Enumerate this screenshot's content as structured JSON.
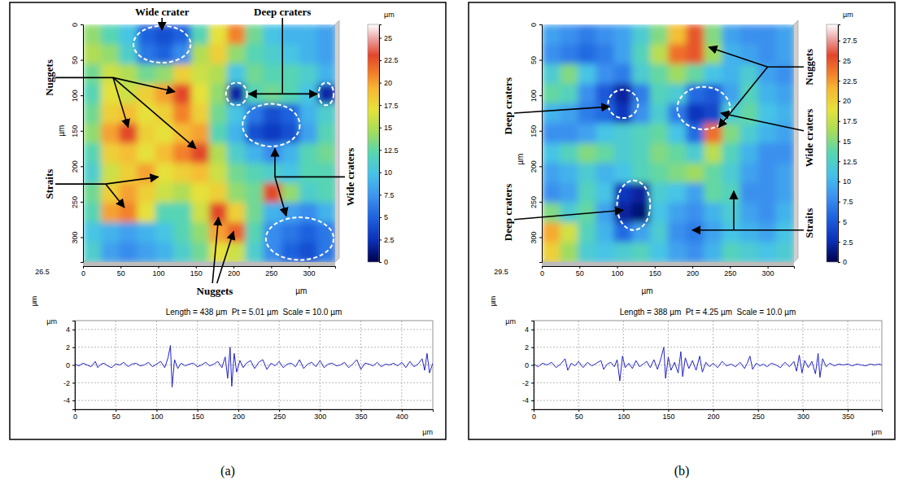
{
  "chart_data": [
    {
      "type": "heatmap",
      "panel_label": "(a)",
      "x_label": "µm",
      "y_label": "µm",
      "z_label": "µm",
      "colorbar_label": "µm",
      "xlim": [
        0,
        335
      ],
      "xticks": [
        0,
        50,
        100,
        150,
        200,
        250,
        300
      ],
      "ylim": [
        0,
        335
      ],
      "yticks": [
        0,
        50,
        100,
        150,
        200,
        250,
        300
      ],
      "values": [
        [
          14,
          12,
          10,
          5,
          4,
          5,
          12,
          17,
          21,
          13,
          10,
          9,
          9,
          8
        ],
        [
          15,
          14,
          11,
          6,
          5,
          7,
          15,
          18,
          14,
          12,
          11,
          10,
          9,
          8
        ],
        [
          13,
          16,
          15,
          13,
          14,
          18,
          16,
          15,
          10,
          13,
          12,
          12,
          11,
          9
        ],
        [
          12,
          17,
          16,
          18,
          20,
          23,
          17,
          14,
          2,
          12,
          13,
          12,
          10,
          2
        ],
        [
          13,
          18,
          19,
          17,
          18,
          21,
          18,
          13,
          10,
          6,
          4,
          5,
          9,
          11
        ],
        [
          14,
          20,
          23,
          18,
          17,
          19,
          20,
          12,
          9,
          4,
          3,
          4,
          8,
          12
        ],
        [
          12,
          18,
          19,
          17,
          19,
          21,
          23,
          15,
          11,
          9,
          7,
          9,
          12,
          13
        ],
        [
          11,
          16,
          18,
          20,
          17,
          18,
          19,
          16,
          13,
          12,
          11,
          10,
          12,
          12
        ],
        [
          13,
          18,
          20,
          18,
          16,
          15,
          17,
          18,
          14,
          13,
          23,
          14,
          11,
          12
        ],
        [
          12,
          20,
          21,
          17,
          12,
          12,
          16,
          23,
          18,
          13,
          9,
          8,
          7,
          9
        ],
        [
          10,
          9,
          8,
          9,
          10,
          12,
          14,
          20,
          22,
          12,
          7,
          6,
          5,
          6
        ],
        [
          11,
          8,
          7,
          8,
          9,
          11,
          13,
          17,
          16,
          11,
          7,
          5,
          4,
          6
        ]
      ],
      "colorbar_range": [
        0,
        26.5
      ],
      "colorbar_ticks": [
        0,
        2.5,
        5,
        7.5,
        10,
        12.5,
        15,
        17.5,
        20,
        22.5,
        25
      ],
      "annotations": [
        "Wide crater",
        "Deep craters",
        "Nuggets",
        "Straits",
        "Wide craters",
        "Nuggets"
      ]
    },
    {
      "type": "line",
      "title": "Length = 438 µm  Pt = 5.01 µm  Scale = 10.0 µm",
      "x_label": "µm",
      "y_label": "µm",
      "xlim": [
        0,
        438
      ],
      "xticks": [
        0,
        50,
        100,
        150,
        200,
        250,
        300,
        350,
        400
      ],
      "ylim": [
        -5,
        5
      ],
      "yticks": [
        -4,
        -2,
        0,
        2,
        4
      ],
      "grid": true,
      "color": "#2323c8",
      "x": [
        0,
        5,
        10,
        15,
        20,
        25,
        28,
        32,
        36,
        40,
        45,
        50,
        55,
        60,
        65,
        70,
        75,
        80,
        85,
        90,
        95,
        100,
        105,
        110,
        114,
        117,
        119,
        122,
        126,
        130,
        135,
        140,
        145,
        150,
        155,
        160,
        165,
        170,
        175,
        180,
        184,
        187,
        190,
        192,
        195,
        198,
        202,
        206,
        210,
        215,
        220,
        225,
        230,
        235,
        240,
        245,
        250,
        255,
        260,
        265,
        270,
        275,
        280,
        285,
        290,
        295,
        300,
        305,
        310,
        315,
        320,
        325,
        330,
        335,
        340,
        345,
        350,
        355,
        360,
        365,
        370,
        375,
        380,
        385,
        390,
        395,
        400,
        405,
        410,
        415,
        420,
        425,
        428,
        431,
        434,
        438
      ],
      "values": [
        0.1,
        -0.1,
        0.2,
        0.0,
        -0.2,
        0.4,
        -0.3,
        0.1,
        0.2,
        -0.1,
        -0.3,
        0.1,
        0.0,
        0.3,
        -0.2,
        0.1,
        0.2,
        -0.1,
        0.0,
        0.3,
        -0.2,
        0.1,
        0.4,
        -0.3,
        0.8,
        2.2,
        -2.5,
        0.6,
        -0.4,
        0.2,
        -0.1,
        0.1,
        0.2,
        -0.2,
        0.0,
        0.3,
        -0.1,
        0.1,
        0.4,
        -0.3,
        0.9,
        -1.5,
        2.0,
        -2.4,
        1.3,
        -0.8,
        0.5,
        -0.3,
        0.2,
        0.5,
        -0.4,
        0.3,
        0.6,
        -0.5,
        0.2,
        -0.1,
        0.4,
        -0.3,
        0.1,
        0.2,
        -0.2,
        0.6,
        -0.4,
        0.1,
        0.3,
        -0.2,
        0.5,
        -0.3,
        0.1,
        0.2,
        -0.1,
        0.0,
        0.3,
        -0.3,
        0.1,
        0.6,
        -0.5,
        0.2,
        0.1,
        -0.1,
        0.3,
        -0.2,
        0.1,
        0.0,
        0.2,
        -0.1,
        0.3,
        -0.3,
        0.4,
        -0.2,
        0.1,
        0.7,
        -0.6,
        1.3,
        -0.9,
        0.2
      ]
    },
    {
      "type": "heatmap",
      "panel_label": "(b)",
      "x_label": "µm",
      "y_label": "µm",
      "z_label": "µm",
      "colorbar_label": "µm",
      "xlim": [
        0,
        335
      ],
      "xticks": [
        0,
        50,
        100,
        150,
        200,
        250,
        300
      ],
      "ylim": [
        0,
        335
      ],
      "yticks": [
        0,
        50,
        100,
        150,
        200,
        250,
        300
      ],
      "values": [
        [
          9,
          8,
          7,
          8,
          9,
          12,
          15,
          21,
          25,
          15,
          9,
          8,
          8,
          9
        ],
        [
          8,
          7,
          6,
          7,
          9,
          13,
          17,
          24,
          25,
          16,
          10,
          9,
          8,
          9
        ],
        [
          12,
          15,
          11,
          8,
          7,
          12,
          14,
          16,
          14,
          11,
          10,
          12,
          9,
          8
        ],
        [
          14,
          13,
          8,
          5,
          2,
          7,
          13,
          12,
          6,
          5,
          9,
          13,
          10,
          9
        ],
        [
          10,
          9,
          7,
          6,
          3,
          8,
          12,
          7,
          3,
          4,
          12,
          14,
          11,
          10
        ],
        [
          8,
          8,
          9,
          11,
          12,
          13,
          14,
          11,
          6,
          24,
          15,
          12,
          10,
          9
        ],
        [
          11,
          13,
          15,
          14,
          12,
          13,
          15,
          14,
          12,
          17,
          13,
          10,
          8,
          8
        ],
        [
          9,
          10,
          12,
          10,
          11,
          13,
          14,
          15,
          16,
          14,
          12,
          9,
          8,
          9
        ],
        [
          8,
          9,
          13,
          11,
          3,
          2,
          12,
          11,
          9,
          14,
          13,
          8,
          8,
          9
        ],
        [
          15,
          12,
          14,
          9,
          2,
          1,
          11,
          9,
          8,
          10,
          12,
          9,
          8,
          10
        ],
        [
          22,
          18,
          13,
          10,
          6,
          9,
          12,
          8,
          7,
          9,
          11,
          10,
          9,
          11
        ],
        [
          20,
          16,
          12,
          11,
          12,
          13,
          11,
          9,
          8,
          10,
          13,
          12,
          11,
          12
        ]
      ],
      "colorbar_range": [
        0,
        29.5
      ],
      "colorbar_ticks": [
        0,
        2.5,
        5,
        7.5,
        10,
        12.5,
        15,
        17.5,
        20,
        22.5,
        25,
        27.5
      ],
      "annotations": [
        "Nuggets",
        "Deep craters",
        "Wide craters",
        "Deep craters",
        "Straits"
      ]
    },
    {
      "type": "line",
      "title": "Length = 388 µm  Pt = 4.25 µm  Scale = 10.0 µm",
      "x_label": "µm",
      "y_label": "µm",
      "xlim": [
        0,
        388
      ],
      "xticks": [
        0,
        50,
        100,
        150,
        200,
        250,
        300,
        350
      ],
      "ylim": [
        -5,
        5
      ],
      "yticks": [
        -4,
        -2,
        0,
        2,
        4
      ],
      "grid": true,
      "color": "#2323c8",
      "x": [
        0,
        5,
        10,
        15,
        20,
        25,
        30,
        35,
        38,
        42,
        46,
        50,
        55,
        60,
        65,
        70,
        75,
        78,
        82,
        86,
        90,
        93,
        96,
        99,
        102,
        106,
        110,
        114,
        118,
        122,
        126,
        130,
        134,
        138,
        142,
        145,
        147,
        150,
        153,
        157,
        161,
        164,
        166,
        169,
        173,
        177,
        181,
        185,
        188,
        192,
        196,
        200,
        205,
        210,
        215,
        220,
        225,
        230,
        235,
        238,
        241,
        244,
        248,
        252,
        256,
        260,
        265,
        270,
        275,
        280,
        285,
        290,
        293,
        296,
        299,
        302,
        306,
        310,
        314,
        317,
        319,
        322,
        326,
        330,
        335,
        340,
        345,
        350,
        355,
        360,
        365,
        370,
        375,
        380,
        385,
        388
      ],
      "values": [
        0.1,
        -0.2,
        0.2,
        0.0,
        0.3,
        -0.3,
        0.1,
        0.7,
        -0.6,
        0.2,
        -0.1,
        0.4,
        -0.3,
        0.3,
        -0.1,
        0.2,
        0.5,
        -0.5,
        0.1,
        0.3,
        -0.2,
        0.6,
        -1.8,
        1.0,
        -0.3,
        0.2,
        -0.4,
        0.5,
        -0.2,
        0.1,
        0.4,
        -0.3,
        0.6,
        -0.5,
        0.8,
        2.0,
        -1.5,
        0.9,
        -0.6,
        0.3,
        -0.9,
        1.5,
        -1.3,
        0.8,
        -0.4,
        0.5,
        -0.6,
        1.0,
        -0.8,
        0.3,
        -0.2,
        0.2,
        -0.3,
        0.4,
        -0.1,
        0.1,
        -0.2,
        0.3,
        -0.4,
        0.2,
        1.0,
        -0.5,
        0.2,
        -0.1,
        0.1,
        -0.2,
        0.2,
        0.0,
        -0.3,
        0.3,
        -0.2,
        0.4,
        -0.7,
        1.1,
        -0.9,
        0.5,
        -0.3,
        0.4,
        -1.0,
        1.3,
        -1.4,
        0.7,
        -0.2,
        0.2,
        -0.1,
        0.1,
        0.0,
        0.1,
        -0.1,
        0.1,
        0.0,
        -0.1,
        0.1,
        0.0,
        0.1,
        0.0
      ]
    }
  ]
}
